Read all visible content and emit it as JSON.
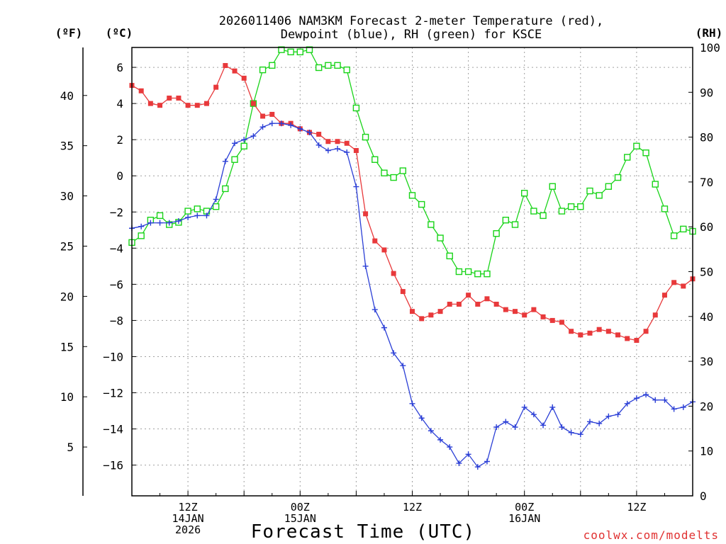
{
  "colors": {
    "temperature": "#e8393b",
    "dewpoint": "#2b3fd6",
    "rh": "#19d419",
    "grid": "#a0a0a0",
    "credit": "#e03030"
  },
  "texts": {
    "title_line1": "2026011406 NAM3KM Forecast 2-meter Temperature (red),",
    "title_line2": "Dewpoint (blue), RH (green) for KSCE",
    "unit_f": "(ºF)",
    "unit_c": "(ºC)",
    "unit_rh": "(RH)",
    "credit": "coolwx.com/modelts"
  },
  "chart_data": {
    "type": "line",
    "title": "2026011406 NAM3KM Forecast 2-meter Temperature (red), Dewpoint (blue), RH (green) for KSCE",
    "xlabel": "Forecast Time (UTC)",
    "x_unit": "forecast hour (from 2026-01-14 06Z)",
    "xlim": [
      0,
      60
    ],
    "x_ticks": [
      {
        "hour": 6,
        "lines": [
          "12Z",
          "14JAN",
          "2026"
        ]
      },
      {
        "hour": 18,
        "lines": [
          "00Z",
          "15JAN"
        ]
      },
      {
        "hour": 30,
        "lines": [
          "12Z"
        ]
      },
      {
        "hour": 42,
        "lines": [
          "00Z",
          "16JAN"
        ]
      },
      {
        "hour": 54,
        "lines": [
          "12Z"
        ]
      }
    ],
    "y_celsius": {
      "label": "(ºC)",
      "lim": [
        -17.7,
        7.1
      ],
      "ticks": [
        6,
        4,
        2,
        0,
        -2,
        -4,
        -6,
        -8,
        -10,
        -12,
        -14,
        -16
      ]
    },
    "y_fahrenheit": {
      "label": "(ºF)",
      "ticks": [
        40,
        35,
        30,
        25,
        20,
        15,
        10,
        5
      ]
    },
    "y_rh": {
      "label": "(RH)",
      "lim": [
        0,
        100
      ],
      "ticks": [
        100,
        90,
        80,
        70,
        60,
        50,
        40,
        30,
        20,
        10,
        0
      ]
    },
    "grid": true,
    "series": [
      {
        "name": "Temperature",
        "axis": "celsius",
        "color": "#e8393b",
        "marker": "filled-square",
        "x": [
          0,
          1,
          2,
          3,
          4,
          5,
          6,
          7,
          8,
          9,
          10,
          11,
          12,
          13,
          14,
          15,
          16,
          17,
          18,
          19,
          20,
          21,
          22,
          23,
          24,
          25,
          26,
          27,
          28,
          29,
          30,
          31,
          32,
          33,
          34,
          35,
          36,
          37,
          38,
          39,
          40,
          41,
          42,
          43,
          44,
          45,
          46,
          47,
          48,
          49,
          50,
          51,
          52,
          53,
          54,
          55,
          56,
          57,
          58,
          59,
          60
        ],
        "values": [
          5.0,
          4.7,
          4.0,
          3.9,
          4.3,
          4.3,
          3.9,
          3.9,
          4.0,
          4.9,
          6.1,
          5.8,
          5.4,
          4.0,
          3.3,
          3.4,
          2.9,
          2.9,
          2.6,
          2.4,
          2.3,
          1.9,
          1.9,
          1.8,
          1.4,
          -2.1,
          -3.6,
          -4.1,
          -5.4,
          -6.4,
          -7.5,
          -7.9,
          -7.7,
          -7.5,
          -7.1,
          -7.1,
          -6.6,
          -7.1,
          -6.8,
          -7.1,
          -7.4,
          -7.5,
          -7.7,
          -7.4,
          -7.8,
          -8.0,
          -8.1,
          -8.6,
          -8.8,
          -8.7,
          -8.5,
          -8.6,
          -8.8,
          -9.0,
          -9.1,
          -8.6,
          -7.7,
          -6.6,
          -5.9,
          -6.1,
          -5.7
        ]
      },
      {
        "name": "Dewpoint",
        "axis": "celsius",
        "color": "#2b3fd6",
        "marker": "plus",
        "x": [
          0,
          1,
          2,
          3,
          4,
          5,
          6,
          7,
          8,
          9,
          10,
          11,
          12,
          13,
          14,
          15,
          16,
          17,
          18,
          19,
          20,
          21,
          22,
          23,
          24,
          25,
          26,
          27,
          28,
          29,
          30,
          31,
          32,
          33,
          34,
          35,
          36,
          37,
          38,
          39,
          40,
          41,
          42,
          43,
          44,
          45,
          46,
          47,
          48,
          49,
          50,
          51,
          52,
          53,
          54,
          55,
          56,
          57,
          58,
          59,
          60
        ],
        "values": [
          -2.9,
          -2.8,
          -2.6,
          -2.6,
          -2.6,
          -2.5,
          -2.3,
          -2.2,
          -2.2,
          -1.3,
          0.8,
          1.8,
          2.0,
          2.2,
          2.7,
          2.9,
          2.9,
          2.8,
          2.6,
          2.4,
          1.7,
          1.4,
          1.5,
          1.3,
          -0.6,
          -5.0,
          -7.4,
          -8.4,
          -9.8,
          -10.5,
          -12.6,
          -13.4,
          -14.1,
          -14.6,
          -15.0,
          -15.9,
          -15.4,
          -16.1,
          -15.8,
          -13.9,
          -13.6,
          -13.9,
          -12.8,
          -13.2,
          -13.8,
          -12.8,
          -13.9,
          -14.2,
          -14.3,
          -13.6,
          -13.7,
          -13.3,
          -13.2,
          -12.6,
          -12.3,
          -12.1,
          -12.4,
          -12.4,
          -12.9,
          -12.8,
          -12.5
        ]
      },
      {
        "name": "RH",
        "axis": "rh",
        "color": "#19d419",
        "marker": "open-square",
        "x": [
          0,
          1,
          2,
          3,
          4,
          5,
          6,
          7,
          8,
          9,
          10,
          11,
          12,
          13,
          14,
          15,
          16,
          17,
          18,
          19,
          20,
          21,
          22,
          23,
          24,
          25,
          26,
          27,
          28,
          29,
          30,
          31,
          32,
          33,
          34,
          35,
          36,
          37,
          38,
          39,
          40,
          41,
          42,
          43,
          44,
          45,
          46,
          47,
          48,
          49,
          50,
          51,
          52,
          53,
          54,
          55,
          56,
          57,
          58,
          59,
          60
        ],
        "values": [
          56.5,
          58,
          61.5,
          62.5,
          60.5,
          61,
          63.5,
          64,
          63.5,
          64.5,
          68.5,
          75,
          78,
          87.5,
          95,
          96,
          99.5,
          99,
          99,
          99.5,
          95.5,
          96,
          96,
          95,
          86.5,
          80,
          75,
          72,
          71,
          72.5,
          67,
          65,
          60.5,
          57.5,
          53.5,
          50,
          50,
          49.5,
          49.5,
          58.5,
          61.5,
          60.5,
          67.5,
          63.5,
          62.5,
          69,
          63.5,
          64.5,
          64.5,
          68,
          67,
          69,
          71,
          75.5,
          78,
          76.5,
          69.5,
          64,
          58,
          59.5,
          59
        ]
      }
    ]
  }
}
